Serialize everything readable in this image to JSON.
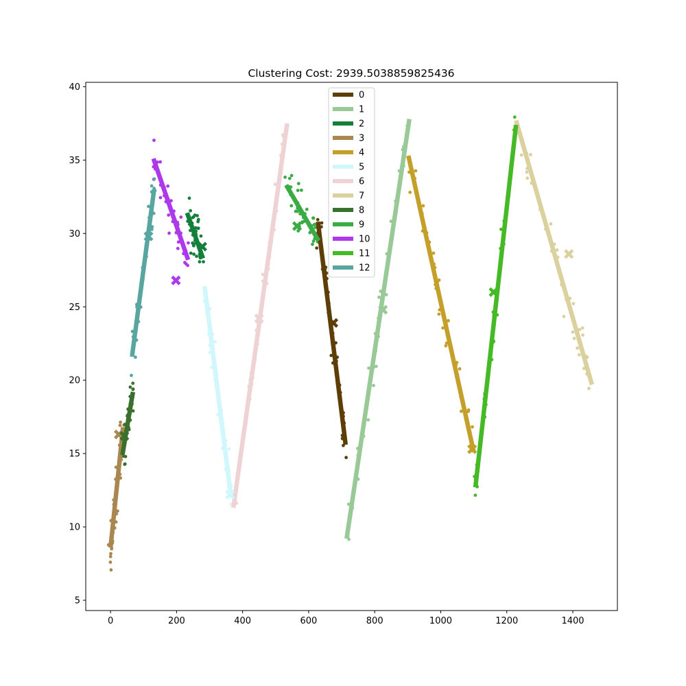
{
  "chart_data": {
    "type": "line",
    "title": "Clustering Cost: 2939.5038859825436",
    "xlabel": "",
    "ylabel": "",
    "xlim": [
      -75,
      1535
    ],
    "ylim": [
      4.3,
      40.3
    ],
    "x_ticks": [
      0,
      200,
      400,
      600,
      800,
      1000,
      1200,
      1400
    ],
    "y_ticks": [
      5,
      10,
      15,
      20,
      25,
      30,
      35,
      40
    ],
    "grid": false,
    "legend_position": "top-center",
    "series": [
      {
        "name": "0",
        "color": "#5c3e06",
        "line": [
          [
            628,
            30.8
          ],
          [
            712,
            15.6
          ]
        ],
        "center": [
          675,
          23.9
        ]
      },
      {
        "name": "1",
        "color": "#98c996",
        "line": [
          [
            715,
            9.2
          ],
          [
            905,
            37.8
          ]
        ],
        "center": [
          825,
          24.8
        ]
      },
      {
        "name": "2",
        "color": "#137f3b",
        "line": [
          [
            232,
            31.4
          ],
          [
            280,
            28.3
          ]
        ],
        "center": [
          278,
          29.1
        ]
      },
      {
        "name": "3",
        "color": "#aa8750",
        "line": [
          [
            0,
            8.6
          ],
          [
            38,
            16.8
          ]
        ],
        "center": [
          25,
          16.3
        ]
      },
      {
        "name": "4",
        "color": "#c4a02a",
        "line": [
          [
            902,
            35.3
          ],
          [
            1100,
            15.1
          ]
        ],
        "center": [
          1095,
          15.3
        ]
      },
      {
        "name": "5",
        "color": "#cff7fc",
        "line": [
          [
            285,
            26.4
          ],
          [
            365,
            12.0
          ]
        ],
        "center": [
          362,
          12.2
        ]
      },
      {
        "name": "6",
        "color": "#efd2d3",
        "line": [
          [
            372,
            11.3
          ],
          [
            535,
            37.5
          ]
        ],
        "center": [
          450,
          24.2
        ]
      },
      {
        "name": "7",
        "color": "#dbd19e",
        "line": [
          [
            1228,
            37.7
          ],
          [
            1458,
            19.7
          ]
        ],
        "center": [
          1388,
          28.6
        ]
      },
      {
        "name": "8",
        "color": "#3a702e",
        "line": [
          [
            36,
            14.9
          ],
          [
            68,
            19.2
          ]
        ],
        "center": [
          42,
          16.2
        ]
      },
      {
        "name": "9",
        "color": "#3bab45",
        "line": [
          [
            532,
            33.3
          ],
          [
            630,
            29.5
          ]
        ],
        "center": [
          565,
          30.5
        ]
      },
      {
        "name": "10",
        "color": "#ae39ec",
        "line": [
          [
            130,
            35.1
          ],
          [
            235,
            28.2
          ]
        ],
        "center": [
          198,
          26.8
        ]
      },
      {
        "name": "11",
        "color": "#46ba26",
        "line": [
          [
            1105,
            12.7
          ],
          [
            1228,
            37.4
          ]
        ],
        "center": [
          1160,
          26.0
        ]
      },
      {
        "name": "12",
        "color": "#59a6a1",
        "line": [
          [
            65,
            21.6
          ],
          [
            132,
            33.0
          ]
        ],
        "center": [
          115,
          29.8
        ]
      }
    ]
  }
}
